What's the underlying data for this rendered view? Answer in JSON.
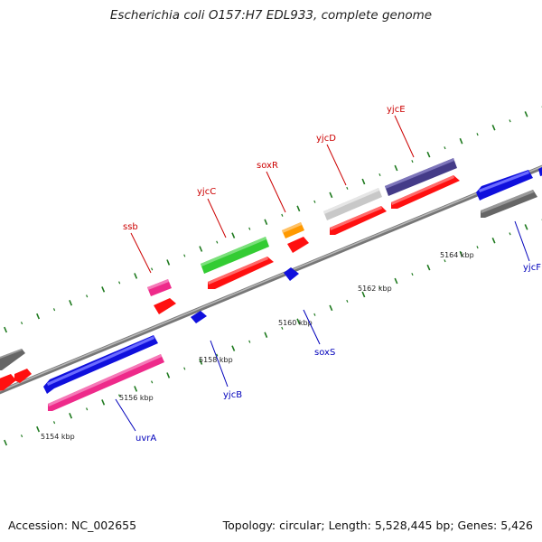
{
  "title": "Escherichia coli O157:H7 EDL933, complete genome",
  "footer": {
    "accession": "Accession: NC_002655",
    "topology": "Topology: circular; Length: 5,528,445 bp; Genes: 5,426"
  },
  "colors": {
    "background": "#ffffff",
    "backbone": "#8a8a8a",
    "tick": "#1f7a1f",
    "label_forward": "#cc0000",
    "label_reverse": "#0000bb"
  },
  "tick_labels": [
    "5154 kbp",
    "5156 kbp",
    "5158 kbp",
    "5160 kbp",
    "5162 kbp",
    "5164 kbp"
  ],
  "genes": [
    {
      "name": "ssb",
      "strand": "forward",
      "color": "#ee2a8a"
    },
    {
      "name": "yjcC",
      "strand": "forward",
      "color": "#33cc33"
    },
    {
      "name": "soxR",
      "strand": "forward",
      "color": "#ff9900"
    },
    {
      "name": "yjcD",
      "strand": "forward",
      "color": "#c8c8c8"
    },
    {
      "name": "yjcE",
      "strand": "forward",
      "color": "#443b88"
    },
    {
      "name": "uvrA",
      "strand": "reverse",
      "color": "#1010dd"
    },
    {
      "name": "yjcB",
      "strand": "reverse",
      "color": "#1010dd"
    },
    {
      "name": "soxS",
      "strand": "reverse",
      "color": "#1010dd"
    },
    {
      "name": "yjcF",
      "strand": "reverse",
      "color": "#1010dd"
    }
  ]
}
